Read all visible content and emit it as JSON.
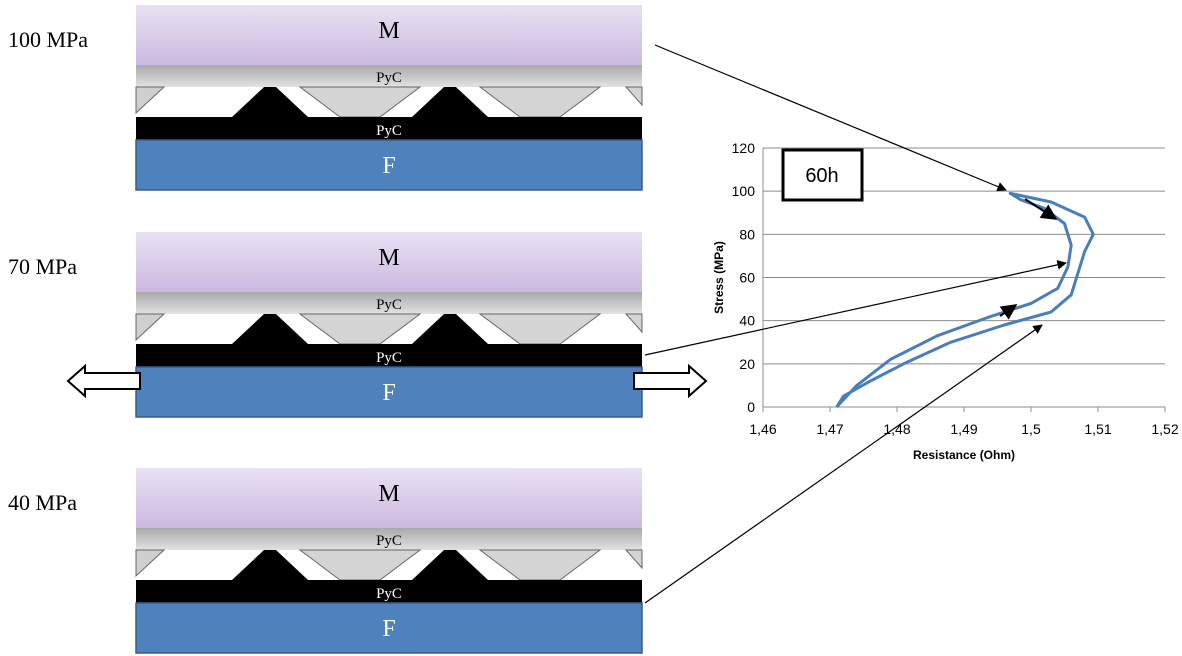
{
  "panels": [
    {
      "stress_label": "100 MPa",
      "matrix": "M",
      "pyc_top": "PyC",
      "pyc_bottom": "PyC",
      "fiber": "F"
    },
    {
      "stress_label": "70 MPa",
      "matrix": "M",
      "pyc_top": "PyC",
      "pyc_bottom": "PyC",
      "fiber": "F"
    },
    {
      "stress_label": "40 MPa",
      "matrix": "M",
      "pyc_top": "PyC",
      "pyc_bottom": "PyC",
      "fiber": "F"
    }
  ],
  "chart_data": {
    "type": "line",
    "annotation": "60h",
    "y_label": "Stress (MPa)",
    "x_label": "Resistance (Ohm)",
    "x": [
      1.471,
      1.472,
      1.476,
      1.481,
      1.488,
      1.496,
      1.503,
      1.506,
      1.507,
      1.508,
      1.5093,
      1.508,
      1.503,
      1.4969,
      1.4985,
      1.502,
      1.505,
      1.506,
      1.5055,
      1.504,
      1.5,
      1.494,
      1.486,
      1.479,
      1.474,
      1.471
    ],
    "values": [
      0,
      5,
      12,
      20,
      30,
      38,
      44,
      52,
      62,
      72,
      80,
      88,
      95,
      99,
      96,
      92,
      85,
      75,
      65,
      55,
      48,
      42,
      33,
      22,
      10,
      0
    ],
    "color": "#4a7ebb",
    "xlim": [
      1.46,
      1.52
    ],
    "ylim": [
      0,
      120
    ],
    "xticks": [
      {
        "value": 1.46,
        "label": "1,46"
      },
      {
        "value": 1.47,
        "label": "1,47"
      },
      {
        "value": 1.48,
        "label": "1,48"
      },
      {
        "value": 1.49,
        "label": "1,49"
      },
      {
        "value": 1.5,
        "label": "1,5"
      },
      {
        "value": 1.51,
        "label": "1,51"
      },
      {
        "value": 1.52,
        "label": "1,52"
      }
    ],
    "yticks": [
      0,
      20,
      40,
      60,
      80,
      100,
      120
    ],
    "grid": true
  }
}
